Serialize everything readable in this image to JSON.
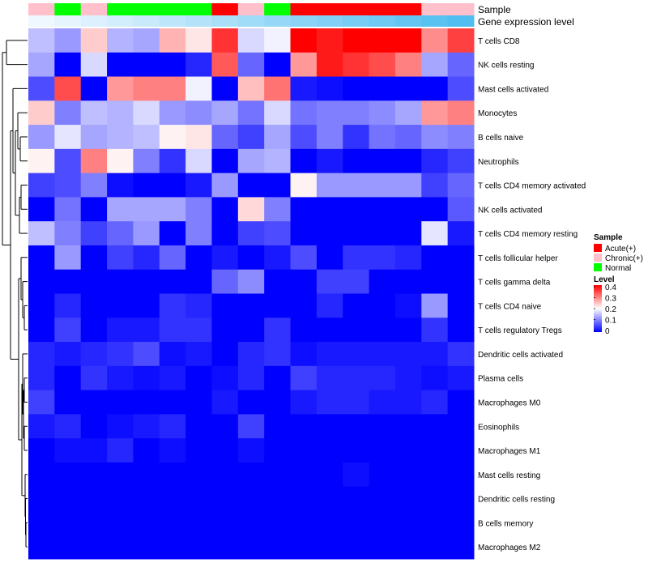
{
  "chart_data": {
    "type": "heatmap",
    "title": "",
    "annotation_labels": {
      "sample": "Sample",
      "expression": "Gene expression level"
    },
    "sample_groups": [
      "Chronic(+)",
      "Normal",
      "Chronic(+)",
      "Normal",
      "Normal",
      "Normal",
      "Normal",
      "Acute(+)",
      "Chronic(+)",
      "Normal",
      "Acute(+)",
      "Acute(+)",
      "Acute(+)",
      "Acute(+)",
      "Acute(+)",
      "Chronic(+)",
      "Chronic(+)"
    ],
    "expression_levels": [
      0.1,
      0.12,
      0.14,
      0.16,
      0.18,
      0.2,
      0.22,
      0.24,
      0.26,
      0.28,
      0.3,
      0.32,
      0.34,
      0.36,
      0.38,
      0.4,
      0.42
    ],
    "rows": [
      "T cells CD8",
      "NK cells resting",
      "Mast cells activated",
      "Monocytes",
      "B cells naive",
      "Neutrophils",
      "T cells CD4 memory activated",
      "NK cells activated",
      "T cells CD4 memory resting",
      "T cells follicular helper",
      "T cells gamma delta",
      "T cells CD4 naive",
      "T cells regulatory  Tregs",
      "Dendritic cells activated",
      "Plasma cells",
      "Macrophages M0",
      "Eosinophils",
      "Macrophages M1",
      "Mast cells resting",
      "Dendritic cells resting",
      "B cells memory",
      "Macrophages M2"
    ],
    "values": [
      [
        0.15,
        0.12,
        0.24,
        0.14,
        0.13,
        0.26,
        0.22,
        0.36,
        0.17,
        0.19,
        0.4,
        0.38,
        0.4,
        0.4,
        0.4,
        0.29,
        0.35
      ],
      [
        0.13,
        0.0,
        0.17,
        0.0,
        0.0,
        0.0,
        0.03,
        0.33,
        0.08,
        0.0,
        0.28,
        0.38,
        0.36,
        0.34,
        0.3,
        0.13,
        0.08
      ],
      [
        0.06,
        0.34,
        0.0,
        0.28,
        0.3,
        0.3,
        0.19,
        0.0,
        0.25,
        0.31,
        0.02,
        0.01,
        0.0,
        0.0,
        0.0,
        0.0,
        0.06
      ],
      [
        0.24,
        0.1,
        0.15,
        0.14,
        0.17,
        0.12,
        0.11,
        0.13,
        0.09,
        0.17,
        0.09,
        0.1,
        0.1,
        0.11,
        0.13,
        0.28,
        0.3
      ],
      [
        0.12,
        0.18,
        0.13,
        0.14,
        0.15,
        0.21,
        0.22,
        0.08,
        0.05,
        0.13,
        0.06,
        0.1,
        0.04,
        0.09,
        0.08,
        0.11,
        0.1
      ],
      [
        0.21,
        0.06,
        0.3,
        0.21,
        0.1,
        0.04,
        0.17,
        0.0,
        0.13,
        0.14,
        0.0,
        0.02,
        0.0,
        0.0,
        0.0,
        0.03,
        0.05
      ],
      [
        0.05,
        0.06,
        0.1,
        0.01,
        0.0,
        0.0,
        0.02,
        0.12,
        0.0,
        0.0,
        0.21,
        0.12,
        0.12,
        0.12,
        0.12,
        0.05,
        0.08
      ],
      [
        0.0,
        0.09,
        0.0,
        0.13,
        0.13,
        0.13,
        0.1,
        0.0,
        0.23,
        0.1,
        0.0,
        0.0,
        0.0,
        0.0,
        0.0,
        0.0,
        0.07
      ],
      [
        0.15,
        0.1,
        0.05,
        0.08,
        0.12,
        0.0,
        0.1,
        0.0,
        0.05,
        0.06,
        0.0,
        0.0,
        0.0,
        0.0,
        0.0,
        0.18,
        0.02
      ],
      [
        0.0,
        0.12,
        0.0,
        0.05,
        0.03,
        0.08,
        0.0,
        0.02,
        0.0,
        0.02,
        0.06,
        0.0,
        0.04,
        0.04,
        0.03,
        0.0,
        0.0
      ],
      [
        0.0,
        0.0,
        0.0,
        0.0,
        0.0,
        0.0,
        0.0,
        0.08,
        0.11,
        0.0,
        0.0,
        0.05,
        0.05,
        0.0,
        0.0,
        0.0,
        0.0
      ],
      [
        0.0,
        0.03,
        0.0,
        0.0,
        0.0,
        0.04,
        0.03,
        0.0,
        0.0,
        0.0,
        0.0,
        0.03,
        0.0,
        0.0,
        0.01,
        0.12,
        0.0
      ],
      [
        0.0,
        0.05,
        0.0,
        0.02,
        0.02,
        0.04,
        0.04,
        0.0,
        0.0,
        0.04,
        0.0,
        0.0,
        0.0,
        0.0,
        0.0,
        0.04,
        0.0
      ],
      [
        0.03,
        0.02,
        0.03,
        0.04,
        0.06,
        0.01,
        0.02,
        0.0,
        0.03,
        0.04,
        0.01,
        0.02,
        0.02,
        0.02,
        0.02,
        0.02,
        0.04
      ],
      [
        0.03,
        0.0,
        0.04,
        0.02,
        0.01,
        0.02,
        0.0,
        0.01,
        0.03,
        0.0,
        0.05,
        0.03,
        0.03,
        0.03,
        0.02,
        0.01,
        0.02
      ],
      [
        0.05,
        0.0,
        0.0,
        0.0,
        0.0,
        0.0,
        0.0,
        0.02,
        0.0,
        0.0,
        0.02,
        0.03,
        0.03,
        0.02,
        0.02,
        0.03,
        0.0
      ],
      [
        0.02,
        0.03,
        0.0,
        0.01,
        0.02,
        0.03,
        0.0,
        0.0,
        0.05,
        0.0,
        0.0,
        0.0,
        0.0,
        0.0,
        0.0,
        0.0,
        0.0
      ],
      [
        0.0,
        0.01,
        0.01,
        0.03,
        0.0,
        0.01,
        0.0,
        0.0,
        0.01,
        0.0,
        0.0,
        0.0,
        0.0,
        0.0,
        0.0,
        0.0,
        0.0
      ],
      [
        0.0,
        0.0,
        0.0,
        0.0,
        0.0,
        0.0,
        0.0,
        0.0,
        0.0,
        0.0,
        0.0,
        0.0,
        0.01,
        0.0,
        0.0,
        0.0,
        0.0
      ],
      [
        0.0,
        0.0,
        0.0,
        0.0,
        0.0,
        0.0,
        0.0,
        0.0,
        0.0,
        0.0,
        0.0,
        0.0,
        0.0,
        0.0,
        0.0,
        0.0,
        0.0
      ],
      [
        0.0,
        0.0,
        0.0,
        0.0,
        0.0,
        0.0,
        0.0,
        0.0,
        0.0,
        0.0,
        0.0,
        0.0,
        0.0,
        0.0,
        0.0,
        0.0,
        0.0
      ],
      [
        0.0,
        0.0,
        0.0,
        0.0,
        0.0,
        0.0,
        0.0,
        0.0,
        0.0,
        0.0,
        0.0,
        0.0,
        0.0,
        0.0,
        0.0,
        0.0,
        0.0
      ]
    ],
    "color_scale": {
      "low": "#0000ff",
      "mid": "#ffffff",
      "high": "#ff0000",
      "range": [
        0,
        0.4
      ]
    },
    "legends": {
      "sample": {
        "title": "Sample",
        "entries": [
          {
            "label": "Acute(+)",
            "color": "#ff0000"
          },
          {
            "label": "Chronic(+)",
            "color": "#ffc0cb"
          },
          {
            "label": "Normal",
            "color": "#00ff00"
          }
        ]
      },
      "level": {
        "title": "Level",
        "ticks": [
          "0.4",
          "0.3",
          "0.2",
          "0.1",
          "0"
        ]
      }
    },
    "dendrogram": "rows",
    "legend_position": "right"
  }
}
